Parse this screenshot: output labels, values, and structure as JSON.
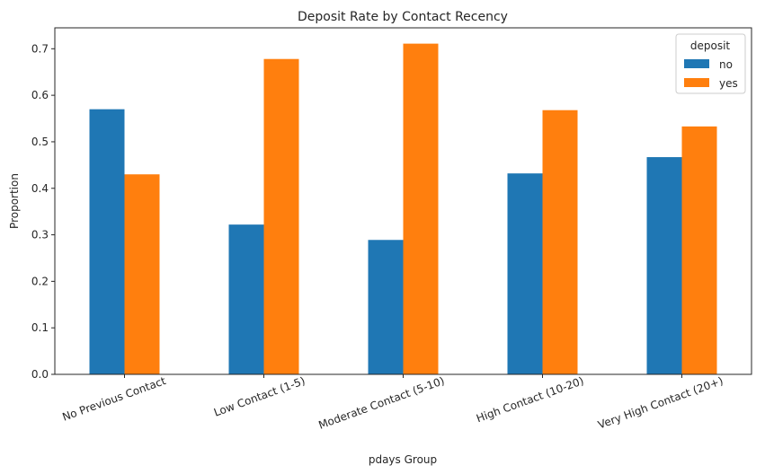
{
  "chart_data": {
    "type": "bar",
    "title": "Deposit Rate by Contact Recency",
    "xlabel": "pdays Group",
    "ylabel": "Proportion",
    "categories": [
      "No Previous Contact",
      "Low Contact (1-5)",
      "Moderate Contact (5-10)",
      "High Contact (10-20)",
      "Very High Contact (20+)"
    ],
    "series": [
      {
        "name": "no",
        "values": [
          0.57,
          0.322,
          0.289,
          0.432,
          0.467
        ],
        "color": "#1f77b4"
      },
      {
        "name": "yes",
        "values": [
          0.43,
          0.678,
          0.711,
          0.568,
          0.533
        ],
        "color": "#ff7f0e"
      }
    ],
    "ylim": [
      0,
      0.745
    ],
    "yticks": [
      0.0,
      0.1,
      0.2,
      0.3,
      0.4,
      0.5,
      0.6,
      0.7
    ],
    "ytick_labels": [
      "0.0",
      "0.1",
      "0.2",
      "0.3",
      "0.4",
      "0.5",
      "0.6",
      "0.7"
    ],
    "grid": false,
    "legend": {
      "title": "deposit",
      "placement": "top-right"
    }
  }
}
